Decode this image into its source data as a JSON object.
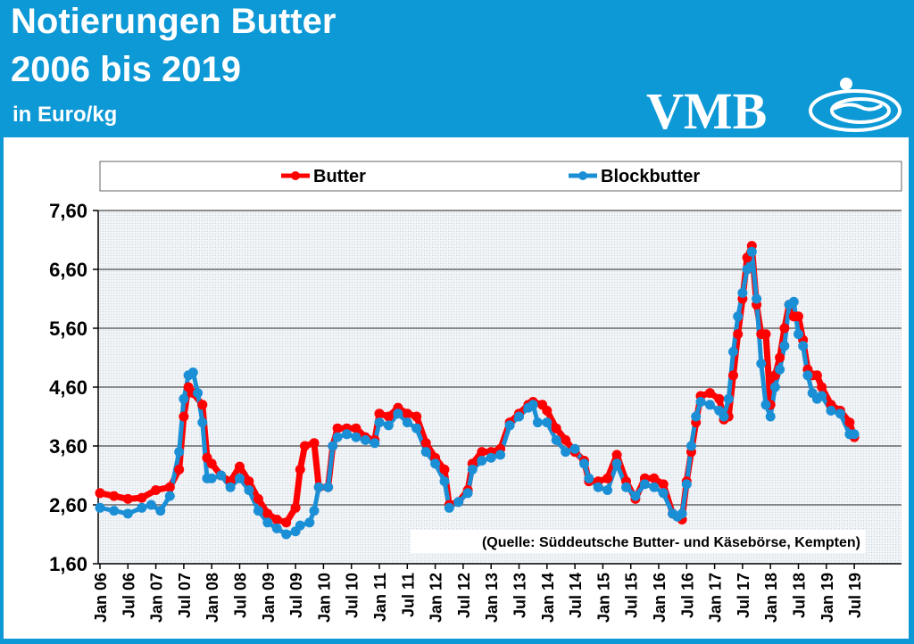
{
  "header": {
    "title_line1": "Notierungen Butter",
    "title_line2": "2006 bis 2019",
    "unit": "in Euro/kg",
    "logo_text": "VMB"
  },
  "colors": {
    "header_bg": "#0d98d6",
    "butter": "#ff0000",
    "blockbutter": "#1a8fd6"
  },
  "chart_data": {
    "type": "line",
    "title": "",
    "xlabel": "",
    "ylabel": "",
    "ylim": [
      1.6,
      7.6
    ],
    "yticks": [
      "1,60",
      "2,60",
      "3,60",
      "4,60",
      "5,60",
      "6,60",
      "7,60"
    ],
    "xtick_labels": [
      "Jan 06",
      "Jul 06",
      "Jan 07",
      "Jul 07",
      "Jan 08",
      "Jul 08",
      "Jan 09",
      "Jul 09",
      "Jan 10",
      "Jul 10",
      "Jan 11",
      "Jul 11",
      "Jan 12",
      "Jul 12",
      "Jan 13",
      "Jul 13",
      "Jan 14",
      "Jul 14",
      "Jan 15",
      "Jul 15",
      "Jan 16",
      "Jul 16",
      "Jan 17",
      "Jul 17",
      "Jan 18",
      "Jul 18",
      "Jan 19",
      "Jul 19"
    ],
    "legend_position": "top",
    "grid": true,
    "annotation": "(Quelle: Süddeutsche Butter- und Käsebörse, Kempten)",
    "series": [
      {
        "name": "Butter",
        "points": [
          [
            "Jan 06",
            2.8
          ],
          [
            "Apr 06",
            2.75
          ],
          [
            "Jul 06",
            2.7
          ],
          [
            "Oct 06",
            2.72
          ],
          [
            "Jan 07",
            2.85
          ],
          [
            "Apr 07",
            2.9
          ],
          [
            "Jun 07",
            3.2
          ],
          [
            "Jul 07",
            4.1
          ],
          [
            "Aug 07",
            4.6
          ],
          [
            "Sep 07",
            4.5
          ],
          [
            "Nov 07",
            4.3
          ],
          [
            "Dec 07",
            3.4
          ],
          [
            "Jan 08",
            3.3
          ],
          [
            "Mar 08",
            3.1
          ],
          [
            "May 08",
            3.0
          ],
          [
            "Jul 08",
            3.25
          ],
          [
            "Sep 08",
            3.0
          ],
          [
            "Nov 08",
            2.7
          ],
          [
            "Jan 09",
            2.45
          ],
          [
            "Mar 09",
            2.35
          ],
          [
            "May 09",
            2.3
          ],
          [
            "Jul 09",
            2.55
          ],
          [
            "Aug 09",
            3.2
          ],
          [
            "Sep 09",
            3.6
          ],
          [
            "Nov 09",
            3.65
          ],
          [
            "Dec 09",
            2.9
          ],
          [
            "Feb 10",
            2.9
          ],
          [
            "Mar 10",
            3.6
          ],
          [
            "Apr 10",
            3.9
          ],
          [
            "Jun 10",
            3.9
          ],
          [
            "Aug 10",
            3.9
          ],
          [
            "Oct 10",
            3.75
          ],
          [
            "Dec 10",
            3.7
          ],
          [
            "Jan 11",
            4.15
          ],
          [
            "Mar 11",
            4.1
          ],
          [
            "May 11",
            4.25
          ],
          [
            "Jul 11",
            4.15
          ],
          [
            "Sep 11",
            4.1
          ],
          [
            "Nov 11",
            3.65
          ],
          [
            "Jan 12",
            3.4
          ],
          [
            "Mar 12",
            3.2
          ],
          [
            "Apr 12",
            2.6
          ],
          [
            "Jun 12",
            2.65
          ],
          [
            "Aug 12",
            2.85
          ],
          [
            "Sep 12",
            3.3
          ],
          [
            "Nov 12",
            3.5
          ],
          [
            "Jan 13",
            3.5
          ],
          [
            "Mar 13",
            3.55
          ],
          [
            "May 13",
            4.0
          ],
          [
            "Jul 13",
            4.15
          ],
          [
            "Sep 13",
            4.3
          ],
          [
            "Oct 13",
            4.35
          ],
          [
            "Dec 13",
            4.3
          ],
          [
            "Jan 14",
            4.2
          ],
          [
            "Mar 14",
            3.9
          ],
          [
            "May 14",
            3.7
          ],
          [
            "Jul 14",
            3.5
          ],
          [
            "Sep 14",
            3.35
          ],
          [
            "Oct 14",
            3.0
          ],
          [
            "Dec 14",
            3.0
          ],
          [
            "Feb 15",
            3.05
          ],
          [
            "Apr 15",
            3.45
          ],
          [
            "Jun 15",
            3.0
          ],
          [
            "Aug 15",
            2.7
          ],
          [
            "Oct 15",
            3.05
          ],
          [
            "Dec 15",
            3.05
          ],
          [
            "Feb 16",
            2.95
          ],
          [
            "Apr 16",
            2.45
          ],
          [
            "Jun 16",
            2.35
          ],
          [
            "Jul 16",
            3.0
          ],
          [
            "Aug 16",
            3.5
          ],
          [
            "Sep 16",
            4.0
          ],
          [
            "Oct 16",
            4.45
          ],
          [
            "Dec 16",
            4.5
          ],
          [
            "Feb 17",
            4.4
          ],
          [
            "Mar 17",
            4.05
          ],
          [
            "Apr 17",
            4.1
          ],
          [
            "May 17",
            4.8
          ],
          [
            "Jun 17",
            5.5
          ],
          [
            "Jul 17",
            6.1
          ],
          [
            "Aug 17",
            6.8
          ],
          [
            "Sep 17",
            7.0
          ],
          [
            "Oct 17",
            6.0
          ],
          [
            "Nov 17",
            5.5
          ],
          [
            "Dec 17",
            5.5
          ],
          [
            "Jan 18",
            4.3
          ],
          [
            "Feb 18",
            4.8
          ],
          [
            "Mar 18",
            5.1
          ],
          [
            "Apr 18",
            5.6
          ],
          [
            "May 18",
            6.0
          ],
          [
            "Jun 18",
            5.8
          ],
          [
            "Jul 18",
            5.8
          ],
          [
            "Aug 18",
            5.4
          ],
          [
            "Sep 18",
            4.9
          ],
          [
            "Oct 18",
            4.8
          ],
          [
            "Nov 18",
            4.8
          ],
          [
            "Dec 18",
            4.6
          ],
          [
            "Feb 19",
            4.3
          ],
          [
            "Apr 19",
            4.2
          ],
          [
            "Jun 19",
            4.0
          ],
          [
            "Jul 19",
            3.75
          ]
        ]
      },
      {
        "name": "Blockbutter",
        "points": [
          [
            "Jan 06",
            2.55
          ],
          [
            "Apr 06",
            2.5
          ],
          [
            "Jul 06",
            2.45
          ],
          [
            "Oct 06",
            2.55
          ],
          [
            "Dec 06",
            2.6
          ],
          [
            "Feb 07",
            2.5
          ],
          [
            "Apr 07",
            2.75
          ],
          [
            "Jun 07",
            3.5
          ],
          [
            "Jul 07",
            4.4
          ],
          [
            "Aug 07",
            4.8
          ],
          [
            "Sep 07",
            4.85
          ],
          [
            "Oct 07",
            4.5
          ],
          [
            "Nov 07",
            4.0
          ],
          [
            "Dec 07",
            3.05
          ],
          [
            "Jan 08",
            3.05
          ],
          [
            "Mar 08",
            3.1
          ],
          [
            "May 08",
            2.9
          ],
          [
            "Jul 08",
            3.05
          ],
          [
            "Sep 08",
            2.85
          ],
          [
            "Nov 08",
            2.5
          ],
          [
            "Jan 09",
            2.3
          ],
          [
            "Mar 09",
            2.2
          ],
          [
            "May 09",
            2.1
          ],
          [
            "Jul 09",
            2.15
          ],
          [
            "Aug 09",
            2.25
          ],
          [
            "Oct 09",
            2.3
          ],
          [
            "Nov 09",
            2.5
          ],
          [
            "Dec 09",
            2.9
          ],
          [
            "Feb 10",
            2.9
          ],
          [
            "Mar 10",
            3.6
          ],
          [
            "Apr 10",
            3.75
          ],
          [
            "Jun 10",
            3.8
          ],
          [
            "Aug 10",
            3.75
          ],
          [
            "Oct 10",
            3.7
          ],
          [
            "Dec 10",
            3.65
          ],
          [
            "Jan 11",
            4.0
          ],
          [
            "Mar 11",
            3.95
          ],
          [
            "May 11",
            4.15
          ],
          [
            "Jul 11",
            4.0
          ],
          [
            "Sep 11",
            3.9
          ],
          [
            "Nov 11",
            3.5
          ],
          [
            "Jan 12",
            3.3
          ],
          [
            "Mar 12",
            3.0
          ],
          [
            "Apr 12",
            2.55
          ],
          [
            "Jun 12",
            2.65
          ],
          [
            "Aug 12",
            2.8
          ],
          [
            "Sep 12",
            3.2
          ],
          [
            "Nov 12",
            3.35
          ],
          [
            "Jan 13",
            3.4
          ],
          [
            "Mar 13",
            3.45
          ],
          [
            "May 13",
            3.95
          ],
          [
            "Jul 13",
            4.1
          ],
          [
            "Sep 13",
            4.25
          ],
          [
            "Oct 13",
            4.3
          ],
          [
            "Nov 13",
            4.0
          ],
          [
            "Jan 14",
            4.0
          ],
          [
            "Mar 14",
            3.7
          ],
          [
            "May 14",
            3.5
          ],
          [
            "Jul 14",
            3.55
          ],
          [
            "Sep 14",
            3.3
          ],
          [
            "Oct 14",
            3.05
          ],
          [
            "Dec 14",
            2.9
          ],
          [
            "Feb 15",
            2.85
          ],
          [
            "Apr 15",
            3.3
          ],
          [
            "Jun 15",
            2.9
          ],
          [
            "Aug 15",
            2.75
          ],
          [
            "Oct 15",
            2.95
          ],
          [
            "Dec 15",
            2.9
          ],
          [
            "Feb 16",
            2.8
          ],
          [
            "Apr 16",
            2.45
          ],
          [
            "May 16",
            2.4
          ],
          [
            "Jun 16",
            2.45
          ],
          [
            "Jul 16",
            2.95
          ],
          [
            "Aug 16",
            3.6
          ],
          [
            "Sep 16",
            4.1
          ],
          [
            "Oct 16",
            4.35
          ],
          [
            "Dec 16",
            4.3
          ],
          [
            "Feb 17",
            4.2
          ],
          [
            "Mar 17",
            4.1
          ],
          [
            "Apr 17",
            4.4
          ],
          [
            "May 17",
            5.2
          ],
          [
            "Jun 17",
            5.8
          ],
          [
            "Jul 17",
            6.2
          ],
          [
            "Aug 17",
            6.6
          ],
          [
            "Sep 17",
            6.9
          ],
          [
            "Oct 17",
            6.1
          ],
          [
            "Nov 17",
            5.0
          ],
          [
            "Dec 17",
            4.3
          ],
          [
            "Jan 18",
            4.1
          ],
          [
            "Feb 18",
            4.6
          ],
          [
            "Mar 18",
            4.9
          ],
          [
            "Apr 18",
            5.3
          ],
          [
            "May 18",
            6.0
          ],
          [
            "Jun 18",
            6.05
          ],
          [
            "Jul 18",
            5.5
          ],
          [
            "Aug 18",
            5.3
          ],
          [
            "Sep 18",
            4.8
          ],
          [
            "Oct 18",
            4.5
          ],
          [
            "Nov 18",
            4.4
          ],
          [
            "Dec 18",
            4.45
          ],
          [
            "Feb 19",
            4.2
          ],
          [
            "Apr 19",
            4.15
          ],
          [
            "Jun 19",
            3.8
          ],
          [
            "Jul 19",
            3.8
          ]
        ]
      }
    ]
  }
}
